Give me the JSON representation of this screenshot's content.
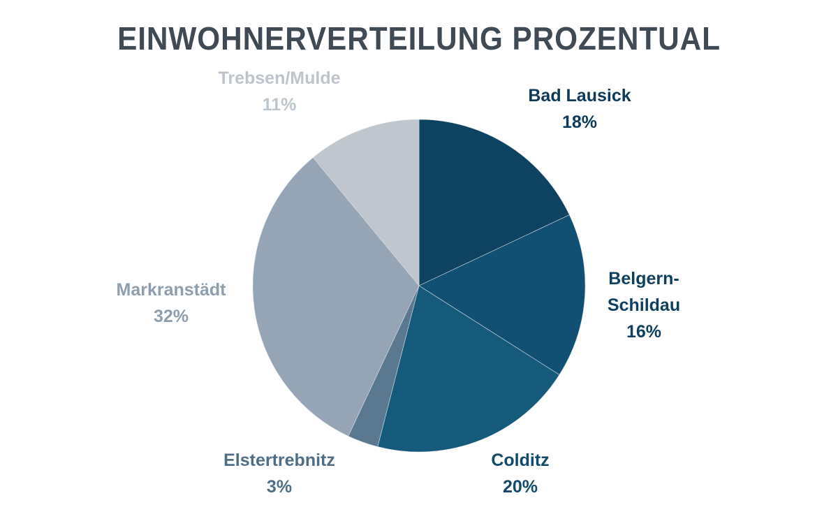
{
  "chart_data": {
    "type": "pie",
    "title": "EINWOHNERVERTEILUNG PROZENTUAL",
    "start": "top, clockwise",
    "slices": [
      {
        "label": "Bad Lausick",
        "label_lines": [
          "Bad Lausick"
        ],
        "value": 18,
        "pct_label": "18%",
        "color": "#0d4260",
        "text_color": "#0d3a58"
      },
      {
        "label": "Belgern-Schildau",
        "label_lines": [
          "Belgern-",
          "Schildau"
        ],
        "value": 16,
        "pct_label": "16%",
        "color": "#115073",
        "text_color": "#0f3f5f"
      },
      {
        "label": "Colditz",
        "label_lines": [
          "Colditz"
        ],
        "value": 20,
        "pct_label": "20%",
        "color": "#155a7b",
        "text_color": "#134a6b"
      },
      {
        "label": "Elstertrebnitz",
        "label_lines": [
          "Elstertrebnitz"
        ],
        "value": 3,
        "pct_label": "3%",
        "color": "#5a7990",
        "text_color": "#4f6e86"
      },
      {
        "label": "Markranstädt",
        "label_lines": [
          "Markranstädt"
        ],
        "value": 32,
        "pct_label": "32%",
        "color": "#95a5b5",
        "text_color": "#8d9eae"
      },
      {
        "label": "Trebsen/Mulde",
        "label_lines": [
          "Trebsen/Mulde"
        ],
        "value": 11,
        "pct_label": "11%",
        "color": "#bfc6ce",
        "text_color": "#bcc4cc"
      }
    ]
  }
}
